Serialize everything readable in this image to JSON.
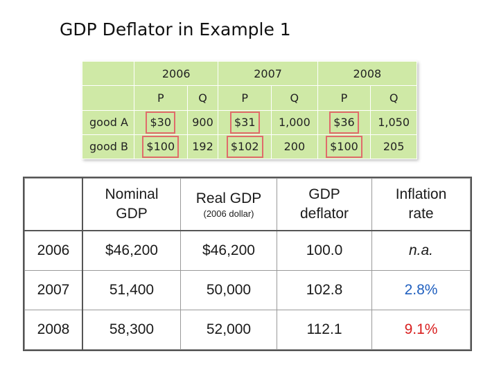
{
  "title": "GDP Deflator in Example 1",
  "goods_table": {
    "years": [
      "2006",
      "2007",
      "2008"
    ],
    "subheaders": [
      "P",
      "Q",
      "P",
      "Q",
      "P",
      "Q"
    ],
    "rows": [
      {
        "label": "good A",
        "cells": [
          "$30",
          "900",
          "$31",
          "1,000",
          "$36",
          "1,050"
        ]
      },
      {
        "label": "good B",
        "cells": [
          "$100",
          "192",
          "$102",
          "200",
          "$100",
          "205"
        ]
      }
    ]
  },
  "gdp_table": {
    "headers": {
      "nominal": [
        "Nominal",
        "GDP"
      ],
      "real": [
        "Real GDP"
      ],
      "real_note": "(2006 dollar)",
      "deflator": [
        "GDP",
        "deflator"
      ],
      "inflation": [
        "Inflation",
        "rate"
      ]
    },
    "rows": [
      {
        "year": "2006",
        "nominal": "$46,200",
        "real": "$46,200",
        "deflator": "100.0",
        "inflation": "n.a."
      },
      {
        "year": "2007",
        "nominal": "51,400",
        "real": "50,000",
        "deflator": "102.8",
        "inflation": "2.8%"
      },
      {
        "year": "2008",
        "nominal": "58,300",
        "real": "52,000",
        "deflator": "112.1",
        "inflation": "9.1%"
      }
    ]
  },
  "colors": {
    "table_green": "#cfe9a6",
    "highlight_border": "#e06b6b",
    "inflation_2007": "#1f5fbf",
    "inflation_2008": "#d81e1e"
  }
}
